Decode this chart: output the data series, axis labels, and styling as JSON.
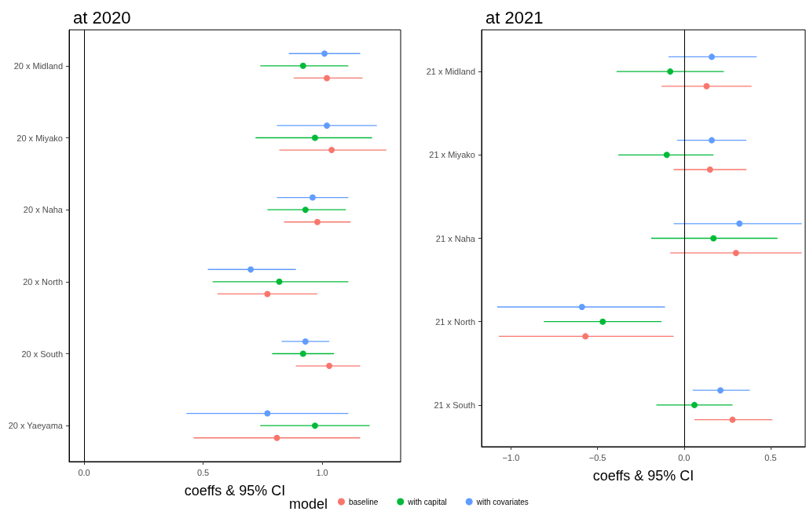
{
  "chart_data": [
    {
      "type": "scatter",
      "orientation": "horizontal",
      "title": "at 2020",
      "xlabel": "coeffs & 95% CI",
      "legend": "bottom",
      "legend_title": "model",
      "marker": "circle",
      "categories": [
        "20 x Midland",
        "20 x Miyako",
        "20 x Naha",
        "20 x North",
        "20 x South",
        "20 x Yaeyama"
      ],
      "xlim": [
        -0.063,
        1.33
      ],
      "xticks": [
        {
          "value": 0,
          "label": "0.0"
        },
        {
          "value": 0.5,
          "label": "0.5"
        },
        {
          "value": 1,
          "label": "1.0"
        }
      ],
      "ref_lines": [
        {
          "axis": "x",
          "value": 0,
          "color": "#000000"
        }
      ],
      "series": [
        {
          "name": "baseline",
          "color": "#f8766d",
          "values": [
            1.02,
            1.04,
            0.98,
            0.77,
            1.03,
            0.81
          ],
          "errors": [
            [
              0.88,
              1.17
            ],
            [
              0.82,
              1.27
            ],
            [
              0.84,
              1.12
            ],
            [
              0.56,
              0.98
            ],
            [
              0.89,
              1.16
            ],
            [
              0.46,
              1.16
            ]
          ]
        },
        {
          "name": "with capital",
          "color": "#00ba38",
          "values": [
            0.92,
            0.97,
            0.93,
            0.82,
            0.92,
            0.97
          ],
          "errors": [
            [
              0.74,
              1.11
            ],
            [
              0.72,
              1.21
            ],
            [
              0.77,
              1.1
            ],
            [
              0.54,
              1.11
            ],
            [
              0.79,
              1.05
            ],
            [
              0.74,
              1.2
            ]
          ]
        },
        {
          "name": "with covariates",
          "color": "#619cff",
          "values": [
            1.01,
            1.02,
            0.96,
            0.7,
            0.93,
            0.77
          ],
          "errors": [
            [
              0.86,
              1.16
            ],
            [
              0.81,
              1.23
            ],
            [
              0.81,
              1.11
            ],
            [
              0.52,
              0.89
            ],
            [
              0.83,
              1.03
            ],
            [
              0.43,
              1.11
            ]
          ]
        }
      ]
    },
    {
      "type": "scatter",
      "orientation": "horizontal",
      "title": "at 2021",
      "xlabel": "coeffs & 95% CI",
      "marker": "circle",
      "categories": [
        "21 x Midland",
        "21 x Miyako",
        "21 x Naha",
        "21 x North",
        "21 x South"
      ],
      "xlim": [
        -1.17,
        0.7
      ],
      "xticks": [
        {
          "value": -1,
          "label": "−1.0"
        },
        {
          "value": -0.5,
          "label": "−0.5"
        },
        {
          "value": 0,
          "label": "0.0"
        },
        {
          "value": 0.5,
          "label": "0.5"
        }
      ],
      "ref_lines": [
        {
          "axis": "x",
          "value": 0,
          "color": "#000000"
        }
      ],
      "series": [
        {
          "color": "#f8766d",
          "values": [
            0.13,
            0.15,
            0.3,
            -0.57,
            0.28
          ],
          "errors": [
            [
              -0.13,
              0.39
            ],
            [
              -0.06,
              0.36
            ],
            [
              -0.08,
              0.68
            ],
            [
              -1.07,
              -0.06
            ],
            [
              0.06,
              0.51
            ]
          ]
        },
        {
          "color": "#00ba38",
          "values": [
            -0.08,
            -0.1,
            0.17,
            -0.47,
            0.06
          ],
          "errors": [
            [
              -0.39,
              0.23
            ],
            [
              -0.38,
              0.17
            ],
            [
              -0.19,
              0.54
            ],
            [
              -0.81,
              -0.13
            ],
            [
              -0.16,
              0.28
            ]
          ]
        },
        {
          "color": "#619cff",
          "values": [
            0.16,
            0.16,
            0.32,
            -0.59,
            0.21
          ],
          "errors": [
            [
              -0.09,
              0.42
            ],
            [
              -0.04,
              0.36
            ],
            [
              -0.06,
              0.68
            ],
            [
              -1.08,
              -0.11
            ],
            [
              0.05,
              0.38
            ]
          ]
        }
      ]
    }
  ]
}
